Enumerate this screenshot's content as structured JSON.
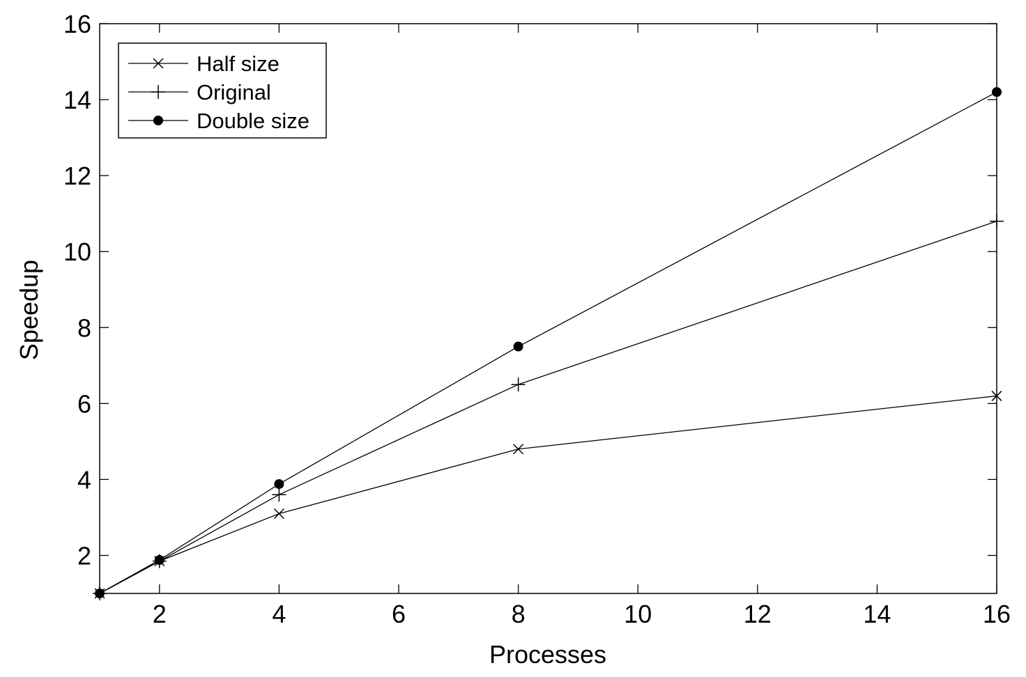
{
  "chart_data": {
    "type": "line",
    "title": "",
    "xlabel": "Processes",
    "ylabel": "Speedup",
    "xlim": [
      1,
      16
    ],
    "ylim": [
      1,
      16
    ],
    "xticks": [
      2,
      4,
      6,
      8,
      10,
      12,
      14,
      16
    ],
    "yticks": [
      2,
      4,
      6,
      8,
      10,
      12,
      14,
      16
    ],
    "grid": false,
    "legend_position": "top-left",
    "series": [
      {
        "name": "Half size",
        "marker": "x",
        "x": [
          1,
          2,
          4,
          8,
          16
        ],
        "y": [
          1.0,
          1.85,
          3.1,
          4.8,
          6.2
        ]
      },
      {
        "name": "Original",
        "marker": "plus",
        "x": [
          1,
          2,
          4,
          8,
          16
        ],
        "y": [
          1.0,
          1.85,
          3.6,
          6.5,
          10.8
        ]
      },
      {
        "name": "Double size",
        "marker": "dot",
        "x": [
          1,
          2,
          4,
          8,
          16
        ],
        "y": [
          1.0,
          1.88,
          3.88,
          7.5,
          14.2
        ]
      }
    ]
  }
}
